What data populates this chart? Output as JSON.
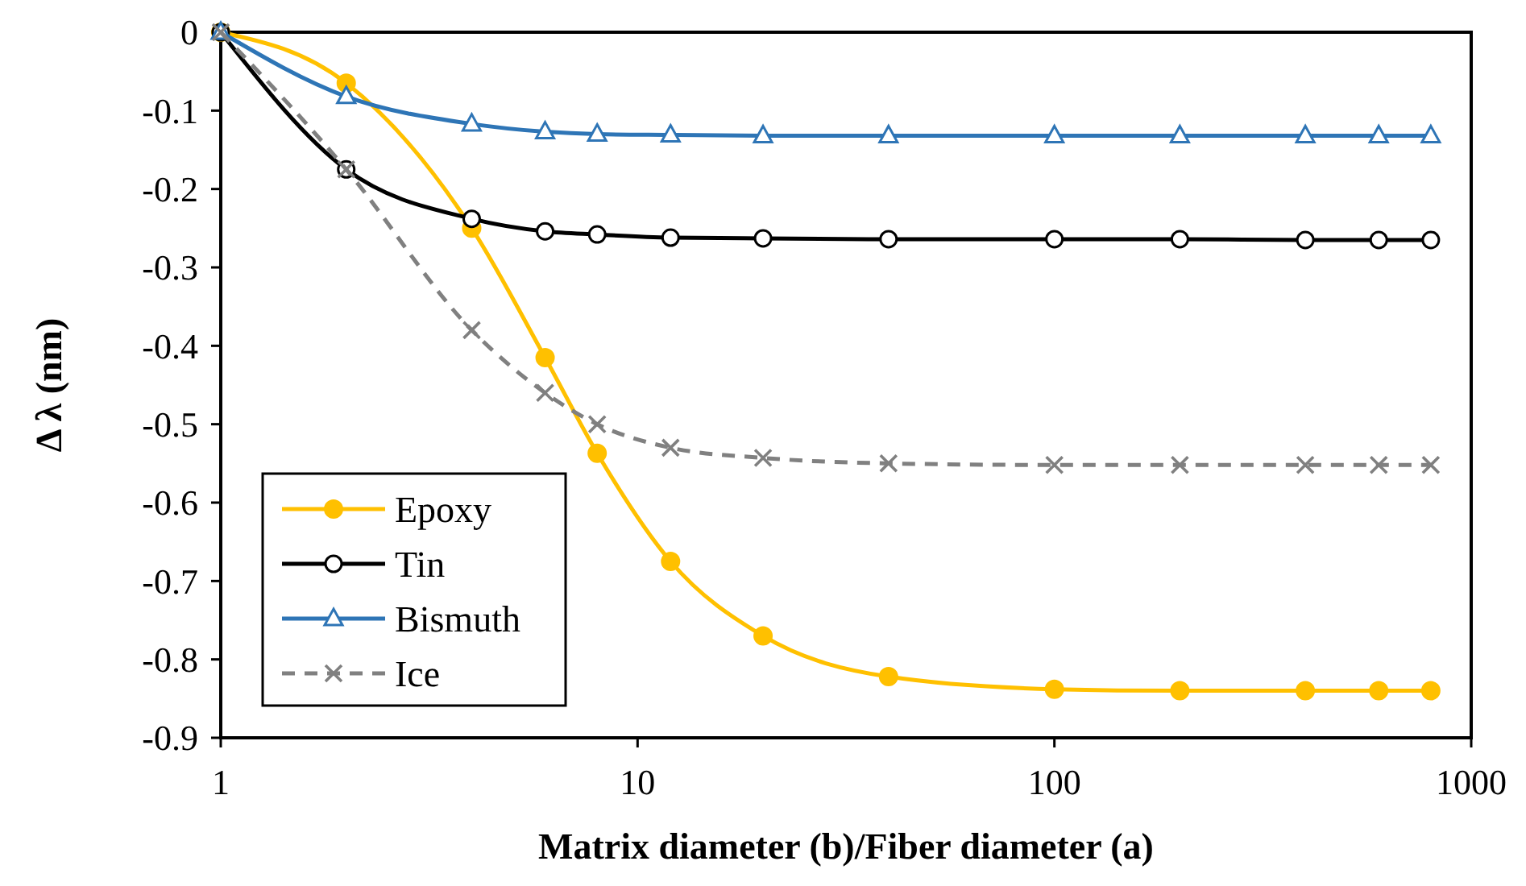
{
  "chart_data": {
    "type": "line",
    "xlabel": "Matrix diameter (b)/Fiber diameter (a)",
    "ylabel": "Δ λ (nm)",
    "log": "x",
    "x": [
      1,
      2,
      4,
      6,
      8,
      12,
      20,
      40,
      100,
      200,
      400,
      600,
      800
    ],
    "xlim": [
      1,
      1000
    ],
    "xticks": [
      1,
      10,
      100,
      1000
    ],
    "ylim": [
      -0.9,
      0
    ],
    "yticks": [
      -0.9,
      -0.8,
      -0.7,
      -0.6,
      -0.5,
      -0.4,
      -0.3,
      -0.2,
      -0.1,
      0
    ],
    "grid": false,
    "legend": "bottom left",
    "series": [
      {
        "name": "Epoxy",
        "color": "#ffc000",
        "marker": "circle",
        "line_style": "solid",
        "values": [
          0,
          -0.065,
          -0.25,
          -0.415,
          -0.537,
          -0.675,
          -0.77,
          -0.822,
          -0.838,
          -0.84,
          -0.84,
          -0.84,
          -0.84
        ]
      },
      {
        "name": "Tin",
        "color": "#000000",
        "marker": "circle_open",
        "line_style": "solid",
        "values": [
          0,
          -0.175,
          -0.238,
          -0.254,
          -0.258,
          -0.262,
          -0.263,
          -0.264,
          -0.264,
          -0.264,
          -0.265,
          -0.265,
          -0.265
        ]
      },
      {
        "name": "Bismuth",
        "color": "#2e75b6",
        "marker": "triangle",
        "line_style": "solid",
        "values": [
          0,
          -0.082,
          -0.117,
          -0.127,
          -0.13,
          -0.131,
          -0.132,
          -0.132,
          -0.132,
          -0.132,
          -0.132,
          -0.132,
          -0.132
        ]
      },
      {
        "name": "Ice",
        "color": "#808080",
        "marker": "cross",
        "line_style": "dashed",
        "values": [
          0,
          -0.175,
          -0.38,
          -0.46,
          -0.5,
          -0.53,
          -0.543,
          -0.55,
          -0.552,
          -0.552,
          -0.552,
          -0.552,
          -0.552
        ]
      }
    ]
  }
}
